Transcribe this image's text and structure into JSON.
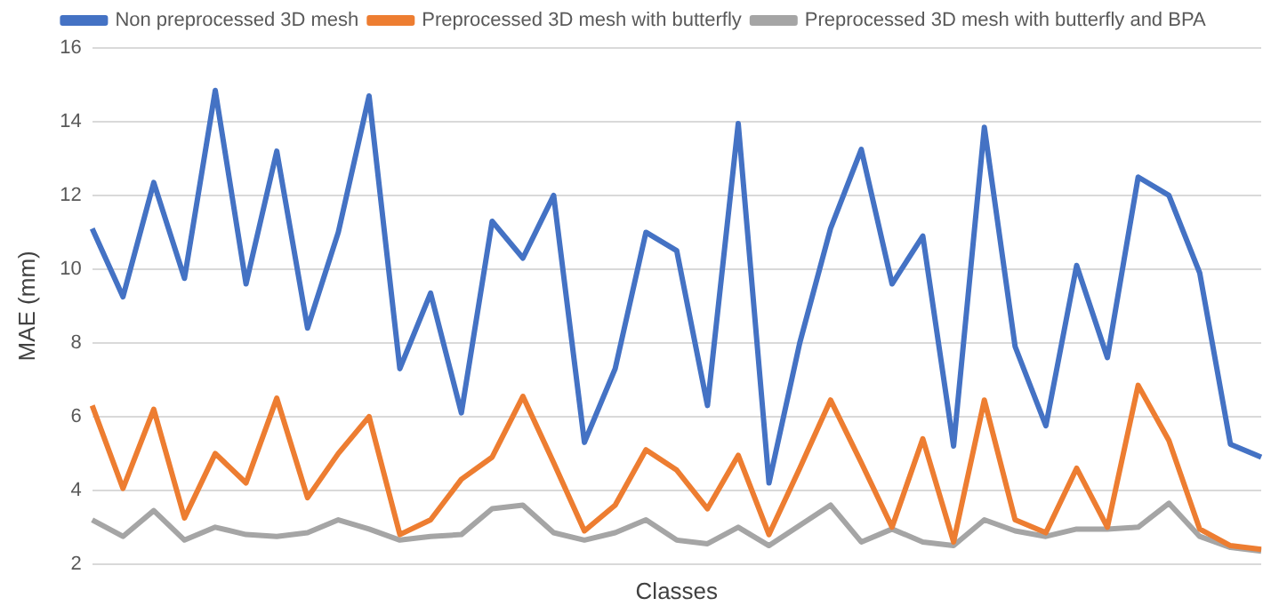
{
  "chart_data": {
    "type": "line",
    "xlabel": "Classes",
    "ylabel": "MAE (mm)",
    "categories": [
      null,
      null,
      null,
      null,
      null,
      null,
      null,
      null,
      null,
      null,
      null,
      null,
      null,
      null,
      null,
      null,
      null,
      null,
      null,
      null,
      null,
      null,
      null,
      null,
      null,
      null,
      null,
      null,
      null,
      null,
      null,
      null,
      null,
      null,
      null,
      null,
      null,
      null,
      null
    ],
    "series": [
      {
        "name": "Non preprocessed 3D mesh",
        "color": "#4472c4",
        "values": [
          11.1,
          9.25,
          12.35,
          9.75,
          14.85,
          9.6,
          13.2,
          8.4,
          11.0,
          14.7,
          7.3,
          9.35,
          6.1,
          11.3,
          10.3,
          12.0,
          5.3,
          7.3,
          11.0,
          10.5,
          6.3,
          13.95,
          4.2,
          8.0,
          11.1,
          13.25,
          9.6,
          10.9,
          5.2,
          13.85,
          7.9,
          5.75,
          10.1,
          7.6,
          12.5,
          12.0,
          9.9,
          5.25,
          4.9
        ]
      },
      {
        "name": "Preprocessed 3D mesh with butterfly",
        "color": "#ed7d31",
        "values": [
          6.3,
          4.05,
          6.2,
          3.25,
          5.0,
          4.2,
          6.5,
          3.8,
          5.0,
          6.0,
          2.8,
          3.2,
          4.3,
          4.9,
          6.55,
          4.75,
          2.9,
          3.6,
          5.1,
          4.55,
          3.5,
          4.95,
          2.8,
          4.6,
          6.45,
          4.75,
          3.0,
          5.4,
          2.6,
          6.45,
          3.2,
          2.85,
          4.6,
          3.0,
          6.85,
          5.35,
          2.95,
          2.5,
          2.4
        ]
      },
      {
        "name": "Preprocessed 3D mesh with butterfly and BPA",
        "color": "#a5a5a5",
        "values": [
          3.2,
          2.75,
          3.45,
          2.65,
          3.0,
          2.8,
          2.75,
          2.85,
          3.2,
          2.95,
          2.65,
          2.75,
          2.8,
          3.5,
          3.6,
          2.85,
          2.65,
          2.85,
          3.2,
          2.65,
          2.55,
          3.0,
          2.5,
          3.05,
          3.6,
          2.6,
          2.95,
          2.6,
          2.5,
          3.2,
          2.9,
          2.75,
          2.95,
          2.95,
          3.0,
          3.65,
          2.75,
          2.45,
          2.35
        ]
      }
    ],
    "ylim": [
      2,
      16
    ],
    "yticks": [
      2,
      4,
      6,
      8,
      10,
      12,
      14,
      16
    ],
    "grid": "y",
    "legend": "top",
    "marker": "none",
    "line_style": "solid"
  }
}
